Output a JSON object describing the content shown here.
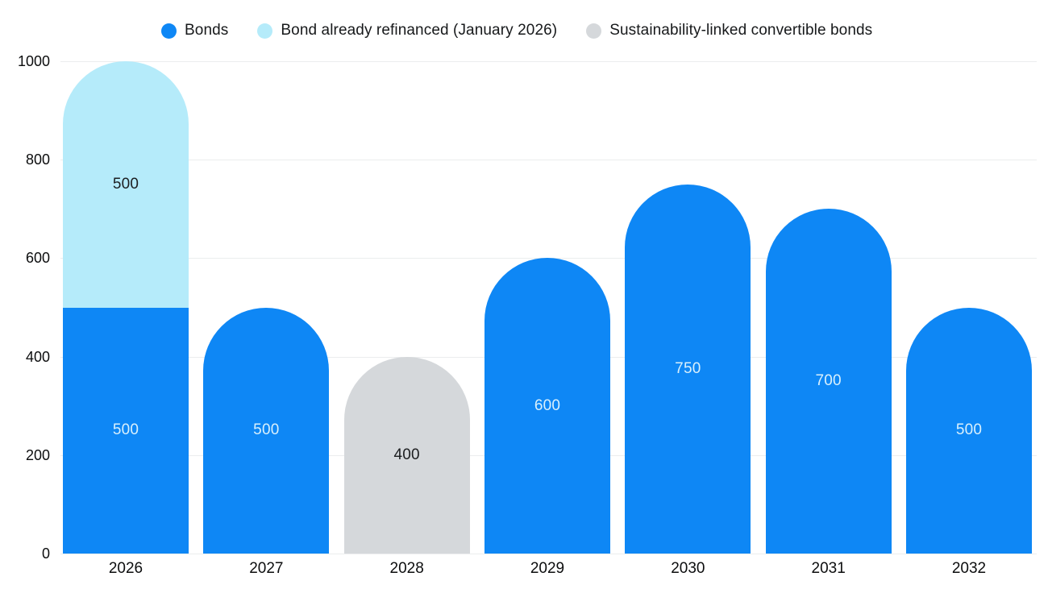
{
  "legend": {
    "items": [
      {
        "label": "Bonds",
        "color": "#0e87f5"
      },
      {
        "label": "Bond already refinanced (January 2026)",
        "color": "#b5ebfa"
      },
      {
        "label": "Sustainability-linked convertible bonds",
        "color": "#d5d8db"
      }
    ]
  },
  "chart_data": {
    "type": "bar",
    "stacked": true,
    "categories": [
      "2026",
      "2027",
      "2028",
      "2029",
      "2030",
      "2031",
      "2032"
    ],
    "series": [
      {
        "name": "Bonds",
        "color": "#0e87f5",
        "label_color": "#d9f0fc",
        "values": [
          500,
          500,
          0,
          600,
          750,
          700,
          500
        ]
      },
      {
        "name": "Bond already refinanced (January 2026)",
        "color": "#b5ebfa",
        "label_color": "#1c1e20",
        "values": [
          500,
          0,
          0,
          0,
          0,
          0,
          0
        ]
      },
      {
        "name": "Sustainability-linked convertible bonds",
        "color": "#d5d8db",
        "label_color": "#1c1e20",
        "values": [
          0,
          0,
          400,
          0,
          0,
          0,
          0
        ]
      }
    ],
    "bar_labels": true,
    "y_ticks": [
      0,
      200,
      400,
      600,
      800,
      1000
    ],
    "ylim": [
      0,
      1000
    ],
    "xlabel": "",
    "ylabel": "",
    "title": "",
    "grid": true,
    "legend_position": "top",
    "gridline_color": "#ebedee",
    "tick_label_color": "#0c0d0e"
  }
}
